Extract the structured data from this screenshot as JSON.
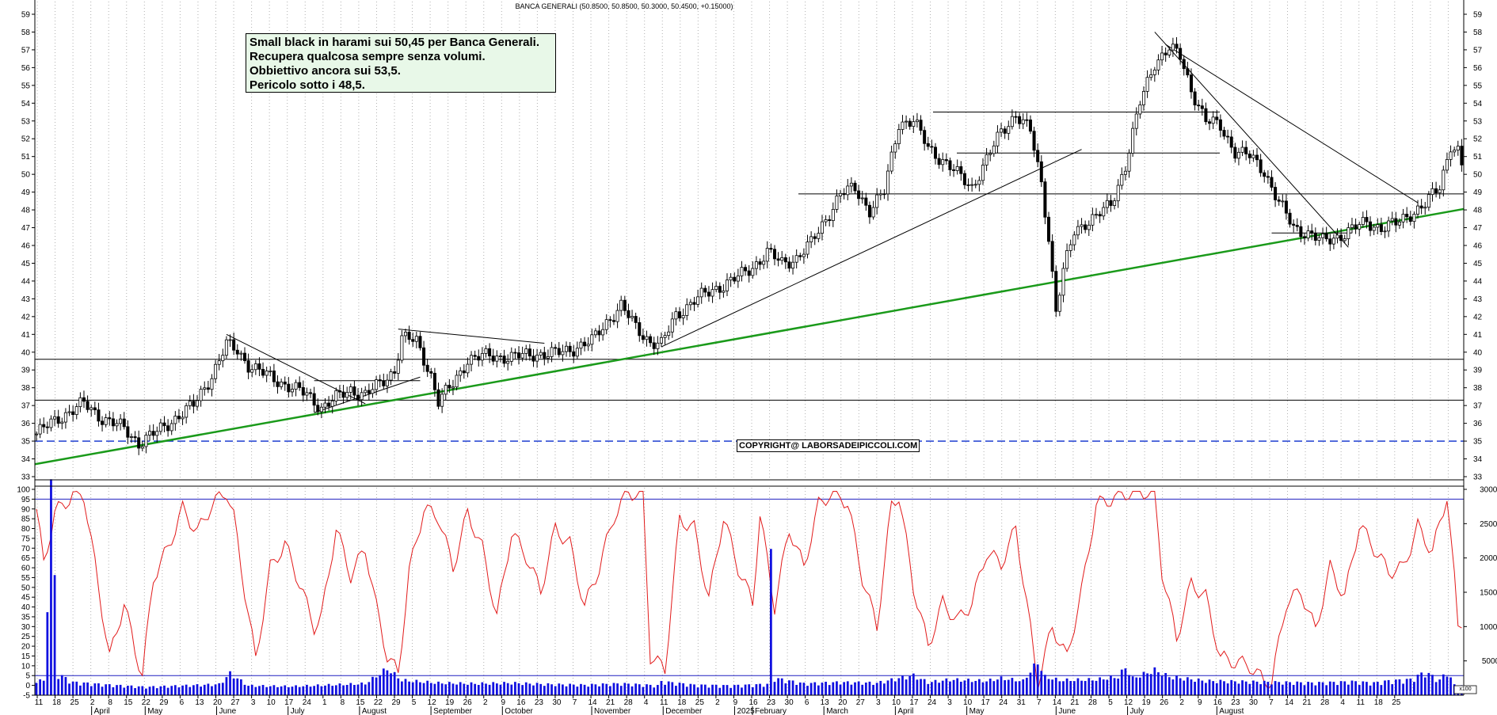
{
  "chart_data": {
    "type": "candlestick",
    "title": "BANCA GENERALI (50.8500, 50.8500, 50.3000, 50.4500, +0.15000)",
    "annotation_lines": [
      "Small black in harami sui 50,45 per Banca Generali.",
      "Recupera qualcosa sempre senza volumi.",
      "Obbiettivo ancora sui 53,5.",
      "Pericolo sotto i 48,5."
    ],
    "copyright": "COPYRIGHT@ LABORSADEIPICCOLI.COM",
    "price_axis": {
      "min": 33,
      "max": 59,
      "ticks": [
        33,
        34,
        35,
        36,
        37,
        38,
        39,
        40,
        41,
        42,
        43,
        44,
        45,
        46,
        47,
        48,
        49,
        50,
        51,
        52,
        53,
        54,
        55,
        56,
        57,
        58,
        59
      ]
    },
    "oscillator_axis": {
      "min": -5,
      "max": 100,
      "ticks": [
        -5,
        0,
        5,
        10,
        15,
        20,
        25,
        30,
        35,
        40,
        45,
        50,
        55,
        60,
        65,
        70,
        75,
        80,
        85,
        90,
        95,
        100
      ]
    },
    "volume_axis": {
      "max": 30000,
      "ticks": [
        5000,
        10000,
        15000,
        20000,
        25000,
        30000
      ]
    },
    "volume_axis_note": "x100",
    "horizontal_levels": [
      35.0,
      37.3,
      39.6,
      48.9,
      51.2,
      53.5
    ],
    "dashed_level": 35.0,
    "oscillator_levels": [
      5,
      95
    ],
    "month_labels": [
      "April",
      "May",
      "June",
      "July",
      "August",
      "September",
      "October",
      "November",
      "December",
      "2025",
      "February",
      "March",
      "April",
      "May",
      "June",
      "July",
      "August"
    ],
    "day_labels": [
      "11",
      "18",
      "25",
      "2",
      "8",
      "15",
      "22",
      "29",
      "6",
      "13",
      "20",
      "27",
      "3",
      "10",
      "17",
      "24",
      "1",
      "8",
      "15",
      "22",
      "29",
      "5",
      "12",
      "19",
      "26",
      "2",
      "9",
      "16",
      "23",
      "30",
      "7",
      "14",
      "21",
      "28",
      "4",
      "11",
      "18",
      "25",
      "2",
      "9",
      "16",
      "23",
      "30",
      "6",
      "13",
      "20",
      "27",
      "3",
      "10",
      "17",
      "24",
      "3",
      "10",
      "17",
      "24",
      "31",
      "7",
      "14",
      "21",
      "28",
      "5",
      "12",
      "19",
      "26",
      "2",
      "9",
      "16",
      "23",
      "30",
      "7",
      "14",
      "21",
      "28",
      "4",
      "11",
      "18",
      "25"
    ],
    "price_keypoints": [
      [
        0,
        35.4
      ],
      [
        6,
        36.3
      ],
      [
        13,
        37.1
      ],
      [
        18,
        36.3
      ],
      [
        24,
        35.7
      ],
      [
        28,
        34.9
      ],
      [
        33,
        35.5
      ],
      [
        38,
        36.3
      ],
      [
        43,
        37.0
      ],
      [
        48,
        38.7
      ],
      [
        52,
        40.4
      ],
      [
        55,
        40.1
      ],
      [
        58,
        39.3
      ],
      [
        62,
        38.8
      ],
      [
        66,
        38.4
      ],
      [
        70,
        38.0
      ],
      [
        74,
        37.6
      ],
      [
        78,
        36.9
      ],
      [
        82,
        37.4
      ],
      [
        86,
        37.9
      ],
      [
        90,
        37.6
      ],
      [
        94,
        38.2
      ],
      [
        98,
        39.0
      ],
      [
        100,
        40.8
      ],
      [
        104,
        40.6
      ],
      [
        108,
        38.7
      ],
      [
        110,
        37.2
      ],
      [
        114,
        38.2
      ],
      [
        118,
        39.6
      ],
      [
        124,
        39.8
      ],
      [
        130,
        39.7
      ],
      [
        136,
        39.9
      ],
      [
        142,
        39.9
      ],
      [
        148,
        40.3
      ],
      [
        152,
        40.6
      ],
      [
        156,
        41.7
      ],
      [
        160,
        42.6
      ],
      [
        164,
        41.4
      ],
      [
        168,
        40.6
      ],
      [
        171,
        40.4
      ],
      [
        175,
        42.1
      ],
      [
        180,
        42.9
      ],
      [
        186,
        43.6
      ],
      [
        192,
        44.2
      ],
      [
        196,
        44.8
      ],
      [
        200,
        45.6
      ],
      [
        204,
        45.0
      ],
      [
        208,
        45.3
      ],
      [
        212,
        46.1
      ],
      [
        216,
        47.5
      ],
      [
        220,
        48.9
      ],
      [
        224,
        49.2
      ],
      [
        228,
        48.0
      ],
      [
        232,
        49.0
      ],
      [
        236,
        52.9
      ],
      [
        240,
        53.0
      ],
      [
        244,
        51.5
      ],
      [
        248,
        50.8
      ],
      [
        252,
        50.0
      ],
      [
        256,
        49.3
      ],
      [
        260,
        50.8
      ],
      [
        264,
        52.4
      ],
      [
        268,
        53.4
      ],
      [
        272,
        52.4
      ],
      [
        275,
        49.5
      ],
      [
        277,
        46.5
      ],
      [
        279,
        42.3
      ],
      [
        281,
        44.5
      ],
      [
        284,
        46.8
      ],
      [
        287,
        47.3
      ],
      [
        290,
        47.6
      ],
      [
        294,
        48.3
      ],
      [
        298,
        50.5
      ],
      [
        302,
        54.0
      ],
      [
        306,
        56.3
      ],
      [
        310,
        57.1
      ],
      [
        313,
        56.6
      ],
      [
        316,
        54.8
      ],
      [
        320,
        53.0
      ],
      [
        324,
        52.7
      ],
      [
        328,
        51.3
      ],
      [
        332,
        51.0
      ],
      [
        336,
        50.2
      ],
      [
        340,
        48.4
      ],
      [
        344,
        47.0
      ],
      [
        348,
        46.7
      ],
      [
        352,
        46.2
      ],
      [
        356,
        46.5
      ],
      [
        360,
        46.9
      ],
      [
        364,
        47.3
      ],
      [
        368,
        47.0
      ],
      [
        372,
        47.2
      ],
      [
        376,
        47.8
      ],
      [
        380,
        48.3
      ],
      [
        384,
        49.3
      ],
      [
        387,
        51.7
      ],
      [
        389,
        51.3
      ],
      [
        390,
        50.45
      ]
    ],
    "oscillator_keypoints": [
      [
        0,
        90
      ],
      [
        2,
        62
      ],
      [
        5,
        88
      ],
      [
        10,
        97
      ],
      [
        13,
        97
      ],
      [
        16,
        62
      ],
      [
        20,
        14
      ],
      [
        24,
        42
      ],
      [
        27,
        18
      ],
      [
        29,
        5
      ],
      [
        32,
        55
      ],
      [
        36,
        70
      ],
      [
        40,
        90
      ],
      [
        44,
        78
      ],
      [
        48,
        92
      ],
      [
        52,
        99
      ],
      [
        54,
        86
      ],
      [
        57,
        48
      ],
      [
        60,
        13
      ],
      [
        64,
        60
      ],
      [
        68,
        72
      ],
      [
        72,
        52
      ],
      [
        76,
        30
      ],
      [
        78,
        35
      ],
      [
        82,
        80
      ],
      [
        86,
        56
      ],
      [
        90,
        70
      ],
      [
        93,
        40
      ],
      [
        96,
        15
      ],
      [
        99,
        6
      ],
      [
        102,
        58
      ],
      [
        106,
        90
      ],
      [
        110,
        86
      ],
      [
        114,
        60
      ],
      [
        118,
        88
      ],
      [
        122,
        70
      ],
      [
        126,
        35
      ],
      [
        130,
        78
      ],
      [
        134,
        66
      ],
      [
        138,
        48
      ],
      [
        142,
        80
      ],
      [
        146,
        72
      ],
      [
        150,
        40
      ],
      [
        154,
        60
      ],
      [
        158,
        86
      ],
      [
        162,
        99
      ],
      [
        166,
        96
      ],
      [
        168,
        15
      ],
      [
        172,
        8
      ],
      [
        176,
        85
      ],
      [
        180,
        80
      ],
      [
        184,
        44
      ],
      [
        188,
        86
      ],
      [
        192,
        60
      ],
      [
        196,
        42
      ],
      [
        198,
        87
      ],
      [
        202,
        40
      ],
      [
        206,
        80
      ],
      [
        210,
        60
      ],
      [
        214,
        92
      ],
      [
        218,
        99
      ],
      [
        222,
        93
      ],
      [
        226,
        55
      ],
      [
        230,
        30
      ],
      [
        234,
        92
      ],
      [
        236,
        97
      ],
      [
        240,
        50
      ],
      [
        244,
        20
      ],
      [
        248,
        42
      ],
      [
        252,
        33
      ],
      [
        256,
        42
      ],
      [
        260,
        68
      ],
      [
        264,
        62
      ],
      [
        268,
        80
      ],
      [
        271,
        42
      ],
      [
        274,
        1
      ],
      [
        278,
        30
      ],
      [
        282,
        14
      ],
      [
        286,
        48
      ],
      [
        290,
        92
      ],
      [
        294,
        95
      ],
      [
        298,
        98
      ],
      [
        302,
        99
      ],
      [
        306,
        98
      ],
      [
        308,
        58
      ],
      [
        312,
        24
      ],
      [
        316,
        52
      ],
      [
        320,
        45
      ],
      [
        324,
        14
      ],
      [
        328,
        12
      ],
      [
        332,
        10
      ],
      [
        336,
        2
      ],
      [
        338,
        2
      ],
      [
        342,
        42
      ],
      [
        346,
        48
      ],
      [
        350,
        28
      ],
      [
        354,
        60
      ],
      [
        358,
        45
      ],
      [
        362,
        82
      ],
      [
        366,
        70
      ],
      [
        370,
        58
      ],
      [
        374,
        60
      ],
      [
        378,
        81
      ],
      [
        382,
        68
      ],
      [
        386,
        97
      ],
      [
        388,
        54
      ],
      [
        389,
        30
      ],
      [
        390,
        33
      ]
    ],
    "volume_keypoints": [
      [
        0,
        2400
      ],
      [
        2,
        2000
      ],
      [
        4,
        30000
      ],
      [
        6,
        3100
      ],
      [
        10,
        1900
      ],
      [
        20,
        1500
      ],
      [
        30,
        1200
      ],
      [
        40,
        1400
      ],
      [
        50,
        1600
      ],
      [
        53,
        3200
      ],
      [
        58,
        1400
      ],
      [
        70,
        1300
      ],
      [
        80,
        1500
      ],
      [
        90,
        1700
      ],
      [
        96,
        3900
      ],
      [
        100,
        2200
      ],
      [
        110,
        1800
      ],
      [
        120,
        1700
      ],
      [
        130,
        1800
      ],
      [
        140,
        1600
      ],
      [
        150,
        1500
      ],
      [
        160,
        1700
      ],
      [
        170,
        1400
      ],
      [
        171,
        2000
      ],
      [
        180,
        1500
      ],
      [
        190,
        1400
      ],
      [
        200,
        1600
      ],
      [
        201,
        20000
      ],
      [
        202,
        2500
      ],
      [
        210,
        1700
      ],
      [
        220,
        1900
      ],
      [
        230,
        1800
      ],
      [
        236,
        2500
      ],
      [
        240,
        2900
      ],
      [
        244,
        1900
      ],
      [
        250,
        2300
      ],
      [
        260,
        2100
      ],
      [
        264,
        2500
      ],
      [
        270,
        2100
      ],
      [
        274,
        4900
      ],
      [
        276,
        2700
      ],
      [
        280,
        2200
      ],
      [
        290,
        2300
      ],
      [
        296,
        2700
      ],
      [
        298,
        4100
      ],
      [
        300,
        2500
      ],
      [
        306,
        3700
      ],
      [
        310,
        2700
      ],
      [
        320,
        2100
      ],
      [
        330,
        2000
      ],
      [
        340,
        1900
      ],
      [
        350,
        1800
      ],
      [
        356,
        1900
      ],
      [
        360,
        2000
      ],
      [
        366,
        1800
      ],
      [
        370,
        2100
      ],
      [
        376,
        2300
      ],
      [
        380,
        3400
      ],
      [
        384,
        2200
      ],
      [
        386,
        3500
      ],
      [
        388,
        1500
      ],
      [
        390,
        1400
      ]
    ]
  }
}
